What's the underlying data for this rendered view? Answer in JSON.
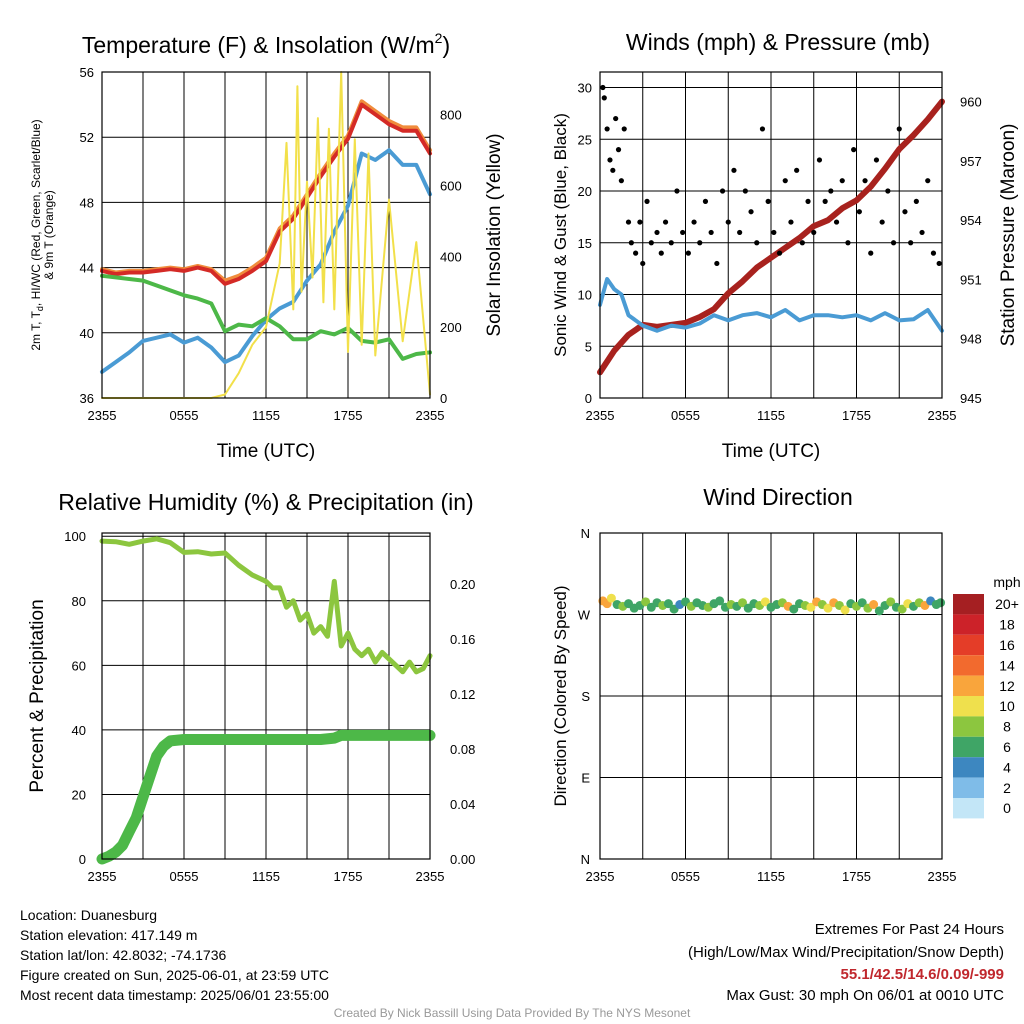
{
  "chart_data": [
    {
      "type": "line",
      "title": "Temperature (F) & Insolation (W/m",
      "title_sup": "2",
      "title_close": ")",
      "xlabel": "Time (UTC)",
      "ylabel_left_lines": [
        "2m T, T",
        "d",
        ", HI/WC (Red, Green, Scarlet/Blue)",
        "& 9m T (Orange)"
      ],
      "ylabel_right": "Solar Insolation (Yellow)",
      "x_ticks": [
        "2355",
        "0555",
        "1155",
        "1755",
        "2355"
      ],
      "y_ticks_left": [
        36,
        40,
        44,
        48,
        52,
        56
      ],
      "y_ticks_right": [
        0,
        200,
        400,
        600,
        800
      ],
      "ylim_left": [
        36,
        56
      ],
      "ylim_right": [
        0,
        920
      ],
      "x_hours": [
        0,
        6,
        12,
        18,
        24
      ],
      "series": [
        {
          "color": "#f08c3c",
          "axis": "left",
          "x": [
            0,
            1,
            2,
            3,
            4,
            5,
            6,
            7,
            8,
            9,
            10,
            11,
            12,
            13,
            14,
            15,
            16,
            17,
            18,
            19,
            20,
            21,
            22,
            23,
            24
          ],
          "values": [
            43.9,
            43.7,
            43.8,
            43.8,
            43.9,
            44.0,
            43.9,
            44.1,
            43.9,
            43.2,
            43.5,
            44.0,
            44.6,
            46.4,
            47.2,
            48.5,
            49.8,
            51.0,
            52.1,
            54.2,
            53.6,
            53.0,
            52.6,
            52.6,
            51.2
          ]
        },
        {
          "color": "#d42a26",
          "axis": "left",
          "x": [
            0,
            1,
            2,
            3,
            4,
            5,
            6,
            7,
            8,
            9,
            10,
            11,
            12,
            13,
            14,
            15,
            16,
            17,
            18,
            19,
            20,
            21,
            22,
            23,
            24
          ],
          "values": [
            43.8,
            43.6,
            43.7,
            43.7,
            43.8,
            43.9,
            43.8,
            44.0,
            43.8,
            43.0,
            43.3,
            43.8,
            44.4,
            46.2,
            47.0,
            48.3,
            49.6,
            50.8,
            51.9,
            54.0,
            53.4,
            52.8,
            52.4,
            52.4,
            51.0
          ]
        },
        {
          "color": "#4a9bd4",
          "axis": "left",
          "x": [
            0,
            1,
            2,
            3,
            4,
            5,
            6,
            7,
            8,
            9,
            10,
            11,
            12,
            13,
            14,
            15,
            16,
            17,
            18,
            19,
            20,
            21,
            22,
            23,
            24
          ],
          "values": [
            37.6,
            38.2,
            38.8,
            39.5,
            39.7,
            39.9,
            39.4,
            39.7,
            39.1,
            38.2,
            38.6,
            39.8,
            40.8,
            41.5,
            41.9,
            43.2,
            44.2,
            46.2,
            47.8,
            51.0,
            50.6,
            51.2,
            50.3,
            50.3,
            48.5
          ]
        },
        {
          "color": "#4db848",
          "axis": "left",
          "x": [
            0,
            1,
            2,
            3,
            4,
            5,
            6,
            7,
            8,
            9,
            10,
            11,
            12,
            13,
            14,
            15,
            16,
            17,
            18,
            19,
            20,
            21,
            22,
            23,
            24
          ],
          "values": [
            43.5,
            43.4,
            43.3,
            43.2,
            42.9,
            42.6,
            42.3,
            42.1,
            41.8,
            40.1,
            40.5,
            40.4,
            40.9,
            40.4,
            39.6,
            39.6,
            40.1,
            39.9,
            40.3,
            39.5,
            39.4,
            39.6,
            38.4,
            38.7,
            38.8
          ]
        },
        {
          "color": "#f2e04a",
          "axis": "right",
          "x": [
            0,
            4,
            8,
            9,
            10,
            11,
            12,
            13,
            13.5,
            14,
            14.3,
            14.6,
            15,
            15.4,
            15.8,
            16.2,
            16.6,
            17,
            17.5,
            18,
            18.5,
            19,
            19.5,
            20,
            21,
            22,
            23,
            24
          ],
          "values": [
            0,
            0,
            0,
            10,
            70,
            150,
            200,
            380,
            720,
            250,
            880,
            300,
            610,
            340,
            790,
            270,
            760,
            250,
            920,
            130,
            730,
            150,
            690,
            120,
            560,
            160,
            440,
            10
          ]
        }
      ]
    },
    {
      "type": "scatter",
      "title": "Winds (mph) & Pressure (mb)",
      "xlabel": "Time (UTC)",
      "ylabel_left": "Sonic Wind & Gust (Blue, Black)",
      "ylabel_right": "Station Pressure (Maroon)",
      "x_ticks": [
        "2355",
        "0555",
        "1155",
        "1755",
        "2355"
      ],
      "y_ticks_left": [
        0,
        5,
        10,
        15,
        20,
        25,
        30
      ],
      "y_ticks_right": [
        945,
        948,
        951,
        954,
        957,
        960
      ],
      "ylim_left": [
        0,
        31.5
      ],
      "ylim_right": [
        945,
        961.5
      ],
      "x_hours": [
        0,
        6,
        12,
        18,
        24
      ],
      "series": [
        {
          "color": "#a8221e",
          "axis": "right",
          "kind": "line",
          "x": [
            0,
            1,
            2,
            3,
            4,
            5,
            6,
            7,
            8,
            9,
            10,
            11,
            12,
            13,
            14,
            15,
            16,
            17,
            18,
            19,
            20,
            21,
            22,
            23,
            24
          ],
          "values": [
            946.3,
            947.4,
            948.2,
            948.7,
            948.6,
            948.7,
            948.8,
            949.1,
            949.5,
            950.3,
            950.9,
            951.6,
            952.1,
            952.6,
            953.1,
            953.7,
            954.0,
            954.6,
            955.0,
            955.7,
            956.6,
            957.6,
            958.3,
            959.1,
            960.0
          ]
        },
        {
          "color": "#4a9bd4",
          "axis": "left",
          "kind": "line",
          "x": [
            0,
            0.5,
            1,
            1.5,
            2,
            3,
            4,
            5,
            6,
            7,
            8,
            9,
            10,
            11,
            12,
            13,
            14,
            15,
            16,
            17,
            18,
            19,
            20,
            21,
            22,
            23,
            24
          ],
          "values": [
            9.0,
            11.5,
            10.5,
            10.0,
            8.0,
            7.0,
            6.5,
            7.0,
            6.8,
            7.2,
            8.0,
            7.5,
            8.0,
            8.2,
            7.8,
            8.5,
            7.5,
            8.0,
            8.0,
            7.8,
            8.0,
            7.5,
            8.2,
            7.5,
            7.6,
            8.5,
            6.5
          ]
        },
        {
          "color": "#000000",
          "axis": "left",
          "kind": "points",
          "x": [
            0.2,
            0.3,
            0.5,
            0.7,
            0.9,
            1.1,
            1.3,
            1.5,
            1.7,
            2.0,
            2.2,
            2.5,
            2.8,
            3.0,
            3.3,
            3.6,
            4.0,
            4.3,
            4.6,
            5.0,
            5.4,
            5.8,
            6.2,
            6.6,
            7.0,
            7.4,
            7.8,
            8.2,
            8.6,
            9.0,
            9.4,
            9.8,
            10.2,
            10.6,
            11.0,
            11.4,
            11.8,
            12.2,
            12.6,
            13.0,
            13.4,
            13.8,
            14.2,
            14.6,
            15.0,
            15.4,
            15.8,
            16.2,
            16.6,
            17.0,
            17.4,
            17.8,
            18.2,
            18.6,
            19.0,
            19.4,
            19.8,
            20.2,
            20.6,
            21.0,
            21.4,
            21.8,
            22.2,
            22.6,
            23.0,
            23.4,
            23.8
          ],
          "values": [
            30,
            29,
            26,
            23,
            22,
            27,
            24,
            21,
            26,
            17,
            15,
            14,
            17,
            13,
            19,
            15,
            16,
            14,
            17,
            15,
            20,
            16,
            14,
            17,
            15,
            19,
            16,
            13,
            20,
            17,
            22,
            16,
            20,
            18,
            15,
            26,
            19,
            16,
            14,
            21,
            17,
            22,
            15,
            19,
            16,
            23,
            19,
            20,
            17,
            21,
            15,
            24,
            18,
            21,
            14,
            23,
            17,
            20,
            15,
            26,
            18,
            15,
            19,
            16,
            21,
            14,
            13
          ]
        }
      ]
    },
    {
      "type": "line",
      "title": "Relative Humidity (%) & Precipitation (in)",
      "xlabel": "",
      "ylabel_left": "Percent & Precipitation",
      "x_ticks": [
        "2355",
        "0555",
        "1155",
        "1755",
        "2355"
      ],
      "y_ticks_left": [
        0,
        20,
        40,
        60,
        80,
        100
      ],
      "y_ticks_right": [
        "0.00",
        "0.04",
        "0.08",
        "0.12",
        "0.16",
        "0.20"
      ],
      "ylim_left": [
        0,
        101
      ],
      "ylim_right": [
        0,
        0.2373
      ],
      "x_hours": [
        0,
        6,
        12,
        18,
        24
      ],
      "series": [
        {
          "color": "#8cc63f",
          "axis": "left",
          "width": 5,
          "x": [
            0,
            1,
            2,
            3,
            4,
            5,
            6,
            7,
            8,
            9,
            10,
            11,
            12,
            12.5,
            13,
            13.5,
            14,
            14.5,
            15,
            15.5,
            16,
            16.5,
            17,
            17.5,
            18,
            18.5,
            19,
            19.5,
            20,
            20.5,
            21,
            21.5,
            22,
            22.5,
            23,
            23.5,
            24
          ],
          "values": [
            98.5,
            98.3,
            97.5,
            98.5,
            99.2,
            98.0,
            95.0,
            95.2,
            94.5,
            94.8,
            91.0,
            88.0,
            86.0,
            84.0,
            84.0,
            78.0,
            80.0,
            74.0,
            76.0,
            70.0,
            72.0,
            69.0,
            86.0,
            66.0,
            70.0,
            65.0,
            63.0,
            65.0,
            61.0,
            64.0,
            62.0,
            60.0,
            58.0,
            61.0,
            58.0,
            59.0,
            63.0
          ]
        },
        {
          "color": "#4db848",
          "axis": "right",
          "width": 11,
          "x": [
            0,
            0.5,
            1,
            1.5,
            2,
            2.5,
            3,
            3.5,
            4,
            4.5,
            5,
            6,
            8,
            10,
            12,
            14,
            16,
            17,
            17.5,
            18,
            20,
            22,
            24
          ],
          "values": [
            0.0,
            0.002,
            0.005,
            0.01,
            0.02,
            0.03,
            0.045,
            0.06,
            0.075,
            0.082,
            0.086,
            0.087,
            0.087,
            0.087,
            0.087,
            0.087,
            0.087,
            0.088,
            0.09,
            0.09,
            0.09,
            0.09,
            0.09
          ]
        }
      ]
    },
    {
      "type": "scatter",
      "title": "Wind Direction",
      "xlabel": "",
      "ylabel_left": "Direction (Colored By Speed)",
      "x_ticks": [
        "2355",
        "0555",
        "1155",
        "1755",
        "2355"
      ],
      "y_ticks_left": [
        "N",
        "W",
        "S",
        "E",
        "N"
      ],
      "x_hours": [
        0,
        6,
        12,
        18,
        24
      ],
      "legend_title": "mph",
      "legend_labels": [
        "20+",
        "18",
        "16",
        "14",
        "12",
        "10",
        "8",
        "6",
        "4",
        "2",
        "0"
      ],
      "legend_colors": [
        "#a51f22",
        "#cc2229",
        "#e43d28",
        "#f26a2e",
        "#f9a53c",
        "#efe04d",
        "#8cc63f",
        "#3fa566",
        "#3d87c0",
        "#7fbce8",
        "#c3e6f7"
      ],
      "points_x": [
        0.2,
        0.5,
        0.8,
        1.2,
        1.6,
        2.0,
        2.4,
        2.8,
        3.2,
        3.6,
        4.0,
        4.4,
        4.8,
        5.2,
        5.6,
        6.0,
        6.4,
        6.8,
        7.2,
        7.6,
        8.0,
        8.4,
        8.8,
        9.2,
        9.6,
        10.0,
        10.4,
        10.8,
        11.2,
        11.6,
        12.0,
        12.4,
        12.8,
        13.2,
        13.6,
        14.0,
        14.4,
        14.8,
        15.2,
        15.6,
        16.0,
        16.4,
        16.8,
        17.2,
        17.6,
        18.0,
        18.4,
        18.8,
        19.2,
        19.6,
        20.0,
        20.4,
        20.8,
        21.2,
        21.6,
        22.0,
        22.4,
        22.8,
        23.2,
        23.6,
        23.9
      ],
      "points_dir": [
        285,
        282,
        288,
        281,
        279,
        282,
        277,
        280,
        284,
        278,
        283,
        280,
        282,
        276,
        281,
        284,
        279,
        283,
        280,
        278,
        282,
        285,
        278,
        281,
        279,
        283,
        277,
        282,
        280,
        284,
        278,
        281,
        283,
        279,
        276,
        282,
        280,
        278,
        284,
        281,
        277,
        283,
        280,
        275,
        282,
        279,
        283,
        277,
        281,
        274,
        280,
        284,
        278,
        276,
        282,
        279,
        283,
        280,
        285,
        281,
        283
      ],
      "points_speed": [
        12,
        13,
        10,
        7,
        8,
        6,
        7,
        6,
        8,
        7,
        6,
        8,
        7,
        6,
        5,
        7,
        8,
        6,
        7,
        8,
        6,
        7,
        6,
        8,
        7,
        9,
        6,
        7,
        8,
        10,
        7,
        6,
        8,
        12,
        7,
        6,
        8,
        10,
        12,
        9,
        11,
        13,
        8,
        10,
        7,
        9,
        6,
        8,
        12,
        7,
        6,
        9,
        7,
        8,
        10,
        6,
        8,
        12,
        5,
        7,
        6
      ]
    }
  ],
  "info": {
    "location": "Location: Duanesburg",
    "elevation": "Station elevation: 417.149 m",
    "latlon": "Station lat/lon: 42.8032; -74.1736",
    "created": "Figure created on Sun, 2025-06-01, at 23:59 UTC",
    "recent": "Most recent data timestamp: 2025/06/01 23:55:00"
  },
  "extremes": {
    "title": "Extremes For Past 24 Hours",
    "subtitle": "(High/Low/Max Wind/Precipitation/Snow Depth)",
    "values": "55.1/42.5/14.6/0.09/-999",
    "gust": "Max Gust: 30 mph On 06/01 at 0010 UTC"
  },
  "credit": "Created By Nick Bassill Using Data Provided By The NYS Mesonet"
}
